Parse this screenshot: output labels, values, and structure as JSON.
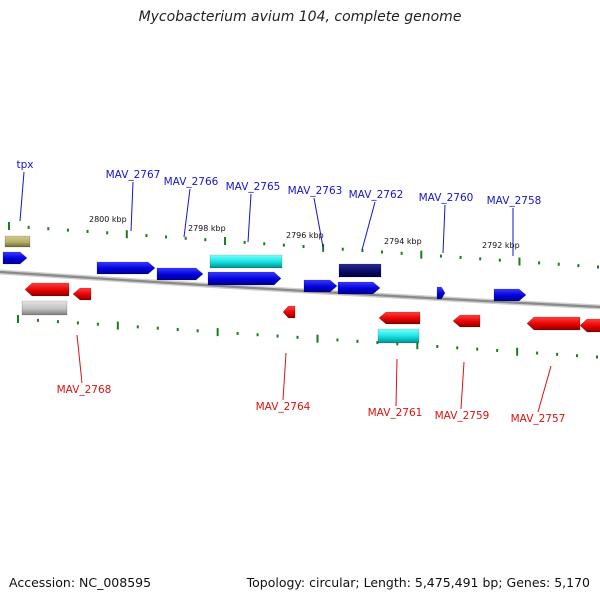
{
  "title": "Mycobacterium avium 104, complete genome",
  "footer": {
    "accession": "Accession: NC_008595",
    "topology": "Topology: circular; Length: 5,475,491 bp; Genes: 5,170"
  },
  "colors": {
    "plus_label": "#1515cc",
    "minus_label": "#dd1111",
    "backbone": "#8a8a8a",
    "tick": "#1f7a1f"
  },
  "ticks": [
    "2800 kbp",
    "2798 kbp",
    "2796 kbp",
    "2794 kbp",
    "2792 kbp"
  ],
  "labels_plus": [
    "tpx",
    "MAV_2767",
    "MAV_2766",
    "MAV_2765",
    "MAV_2763",
    "MAV_2762",
    "MAV_2760",
    "MAV_2758"
  ],
  "labels_minus": [
    "MAV_2768",
    "MAV_2764",
    "MAV_2761",
    "MAV_2759",
    "MAV_2757"
  ]
}
